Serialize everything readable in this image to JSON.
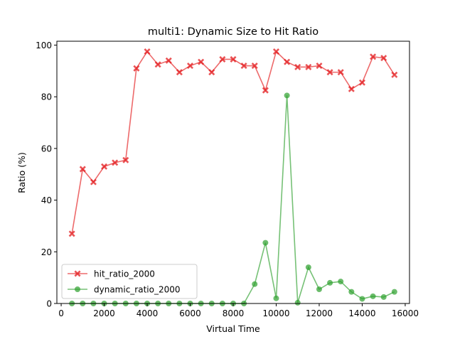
{
  "chart_data": {
    "type": "line",
    "title": "multi1: Dynamic Size to Hit Ratio",
    "xlabel": "Virtual Time",
    "ylabel": "Ratio (%)",
    "xlim": [
      -200,
      16200
    ],
    "ylim": [
      0,
      101.5
    ],
    "xticks": [
      0,
      2000,
      4000,
      6000,
      8000,
      10000,
      12000,
      14000,
      16000
    ],
    "yticks": [
      0,
      20,
      40,
      60,
      80,
      100
    ],
    "grid": false,
    "legend_position": "lower-left",
    "x": [
      500,
      1000,
      1500,
      2000,
      2500,
      3000,
      3500,
      4000,
      4500,
      5000,
      5500,
      6000,
      6500,
      7000,
      7500,
      8000,
      8500,
      9000,
      9500,
      10000,
      10500,
      11000,
      11500,
      12000,
      12500,
      13000,
      13500,
      14000,
      14500,
      15000,
      15500
    ],
    "series": [
      {
        "name": "hit_ratio_2000",
        "color": "#e31a1c",
        "marker": "x",
        "values": [
          27,
          52,
          47,
          53,
          54.5,
          55.5,
          91,
          97.5,
          92.5,
          94,
          89.5,
          92,
          93.5,
          89.5,
          94.5,
          94.5,
          92,
          92,
          82.5,
          97.5,
          93.5,
          91.5,
          91.5,
          92,
          89.5,
          89.5,
          83,
          85.5,
          95.5,
          95,
          88.5
        ]
      },
      {
        "name": "dynamic_ratio_2000",
        "color": "#2ca02c",
        "marker": "o",
        "values": [
          0,
          0,
          0,
          0,
          0,
          0,
          0,
          0,
          0,
          0,
          0,
          0,
          0,
          0,
          0,
          0,
          0,
          7.5,
          23.5,
          2,
          80.5,
          0.3,
          14,
          5.5,
          8,
          8.5,
          4.5,
          1.8,
          2.8,
          2.5,
          4.5
        ]
      }
    ]
  }
}
